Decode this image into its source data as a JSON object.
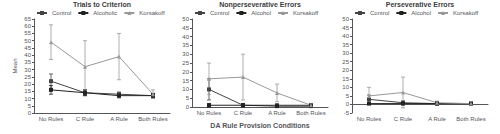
{
  "chart_data": [
    {
      "type": "line",
      "title": "Trials to Criterion",
      "ylabel": "Mean",
      "categories": [
        "No Rules",
        "C Rule",
        "A Rule",
        "Both Rules"
      ],
      "ylim": [
        0,
        65
      ],
      "yticks": [
        0,
        5,
        10,
        15,
        20,
        25,
        30,
        35,
        40,
        45,
        50,
        55,
        60,
        65
      ],
      "grid": false,
      "legend": "top",
      "series": [
        {
          "name": "Control",
          "color": "#444444",
          "marker": "square",
          "values": [
            22,
            14,
            13,
            12
          ],
          "errors": [
            5,
            2,
            1.5,
            1.5
          ]
        },
        {
          "name": "Alcoholic",
          "color": "#222222",
          "marker": "square",
          "values": [
            16,
            14,
            12,
            12
          ],
          "errors": [
            3,
            2,
            1.5,
            1.5
          ]
        },
        {
          "name": "Korsakoff",
          "color": "#999999",
          "marker": "triangle",
          "values": [
            49,
            32,
            39,
            13
          ],
          "errors": [
            12,
            18,
            16,
            3
          ]
        }
      ]
    },
    {
      "type": "line",
      "title": "Nonperseverative Errors",
      "xlabel": "DA Rule Provision Conditions",
      "categories": [
        "No Rules",
        "C Rule",
        "A Rule",
        "Both Rules"
      ],
      "ylim": [
        0,
        50
      ],
      "yticks": [
        0,
        5,
        10,
        15,
        20,
        25,
        30,
        35,
        40,
        45,
        50
      ],
      "grid": false,
      "legend": "top",
      "series": [
        {
          "name": "Control",
          "color": "#444444",
          "marker": "square",
          "values": [
            10,
            1,
            1,
            1
          ],
          "errors": [
            6,
            1,
            0.5,
            0.5
          ]
        },
        {
          "name": "Alcohol",
          "color": "#222222",
          "marker": "square",
          "values": [
            1,
            1,
            0.5,
            0.5
          ],
          "errors": [
            1,
            1,
            0.5,
            0.5
          ]
        },
        {
          "name": "Korsakoff",
          "color": "#999999",
          "marker": "triangle",
          "values": [
            16,
            17,
            8,
            1
          ],
          "errors": [
            9,
            13,
            5,
            1
          ]
        }
      ]
    },
    {
      "type": "line",
      "title": "Perseverative Errors",
      "categories": [
        "No Rules",
        "C Rule",
        "A Rule",
        "Both Rules"
      ],
      "ylim": [
        -5,
        50
      ],
      "yticks": [
        -5,
        0,
        5,
        10,
        15,
        20,
        25,
        30,
        35,
        40,
        45,
        50
      ],
      "grid": false,
      "legend": "top",
      "series": [
        {
          "name": "Control",
          "color": "#444444",
          "marker": "square",
          "values": [
            3,
            1,
            0.5,
            0.5
          ],
          "errors": [
            2.5,
            1,
            0.5,
            0.5
          ]
        },
        {
          "name": "Alcohol",
          "color": "#222222",
          "marker": "square",
          "values": [
            0.5,
            0.5,
            0.5,
            0.5
          ],
          "errors": [
            0.5,
            0.5,
            0.5,
            0.5
          ]
        },
        {
          "name": "Korsakoff",
          "color": "#999999",
          "marker": "triangle",
          "values": [
            5,
            7,
            1,
            0.5
          ],
          "errors": [
            5,
            9,
            1,
            0.5
          ]
        }
      ]
    }
  ]
}
